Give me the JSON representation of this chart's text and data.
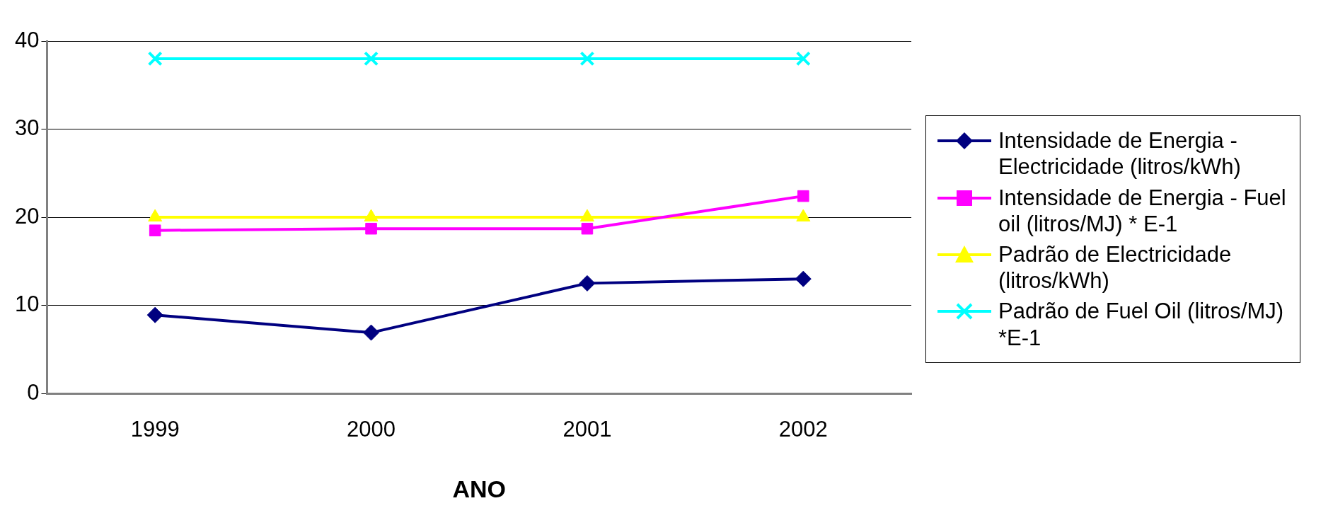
{
  "chart_data": {
    "type": "line",
    "xlabel": "ANO",
    "categories": [
      "1999",
      "2000",
      "2001",
      "2002"
    ],
    "ylim": [
      0,
      40
    ],
    "yticks": [
      0,
      10,
      20,
      30,
      40
    ],
    "grid": "y",
    "legend": "right",
    "series": [
      {
        "name": "Intensidade  de Energia - Electricidade (litros/kWh)",
        "color": "#000080",
        "marker": "diamond",
        "values": [
          8.9,
          6.9,
          12.5,
          13.0
        ]
      },
      {
        "name": "Intensidade de  Energia - Fuel oil (litros/MJ) * E-1",
        "color": "#ff00ff",
        "marker": "square",
        "values": [
          18.5,
          18.7,
          18.7,
          22.4
        ]
      },
      {
        "name": "Padrão de Electricidade (litros/kWh)",
        "color": "#ffff00",
        "marker": "triangle",
        "values": [
          20,
          20,
          20,
          20
        ]
      },
      {
        "name": "Padrão de Fuel Oil (litros/MJ) *E-1",
        "color": "#00ffff",
        "marker": "cross",
        "values": [
          38,
          38,
          38,
          38
        ]
      }
    ]
  }
}
